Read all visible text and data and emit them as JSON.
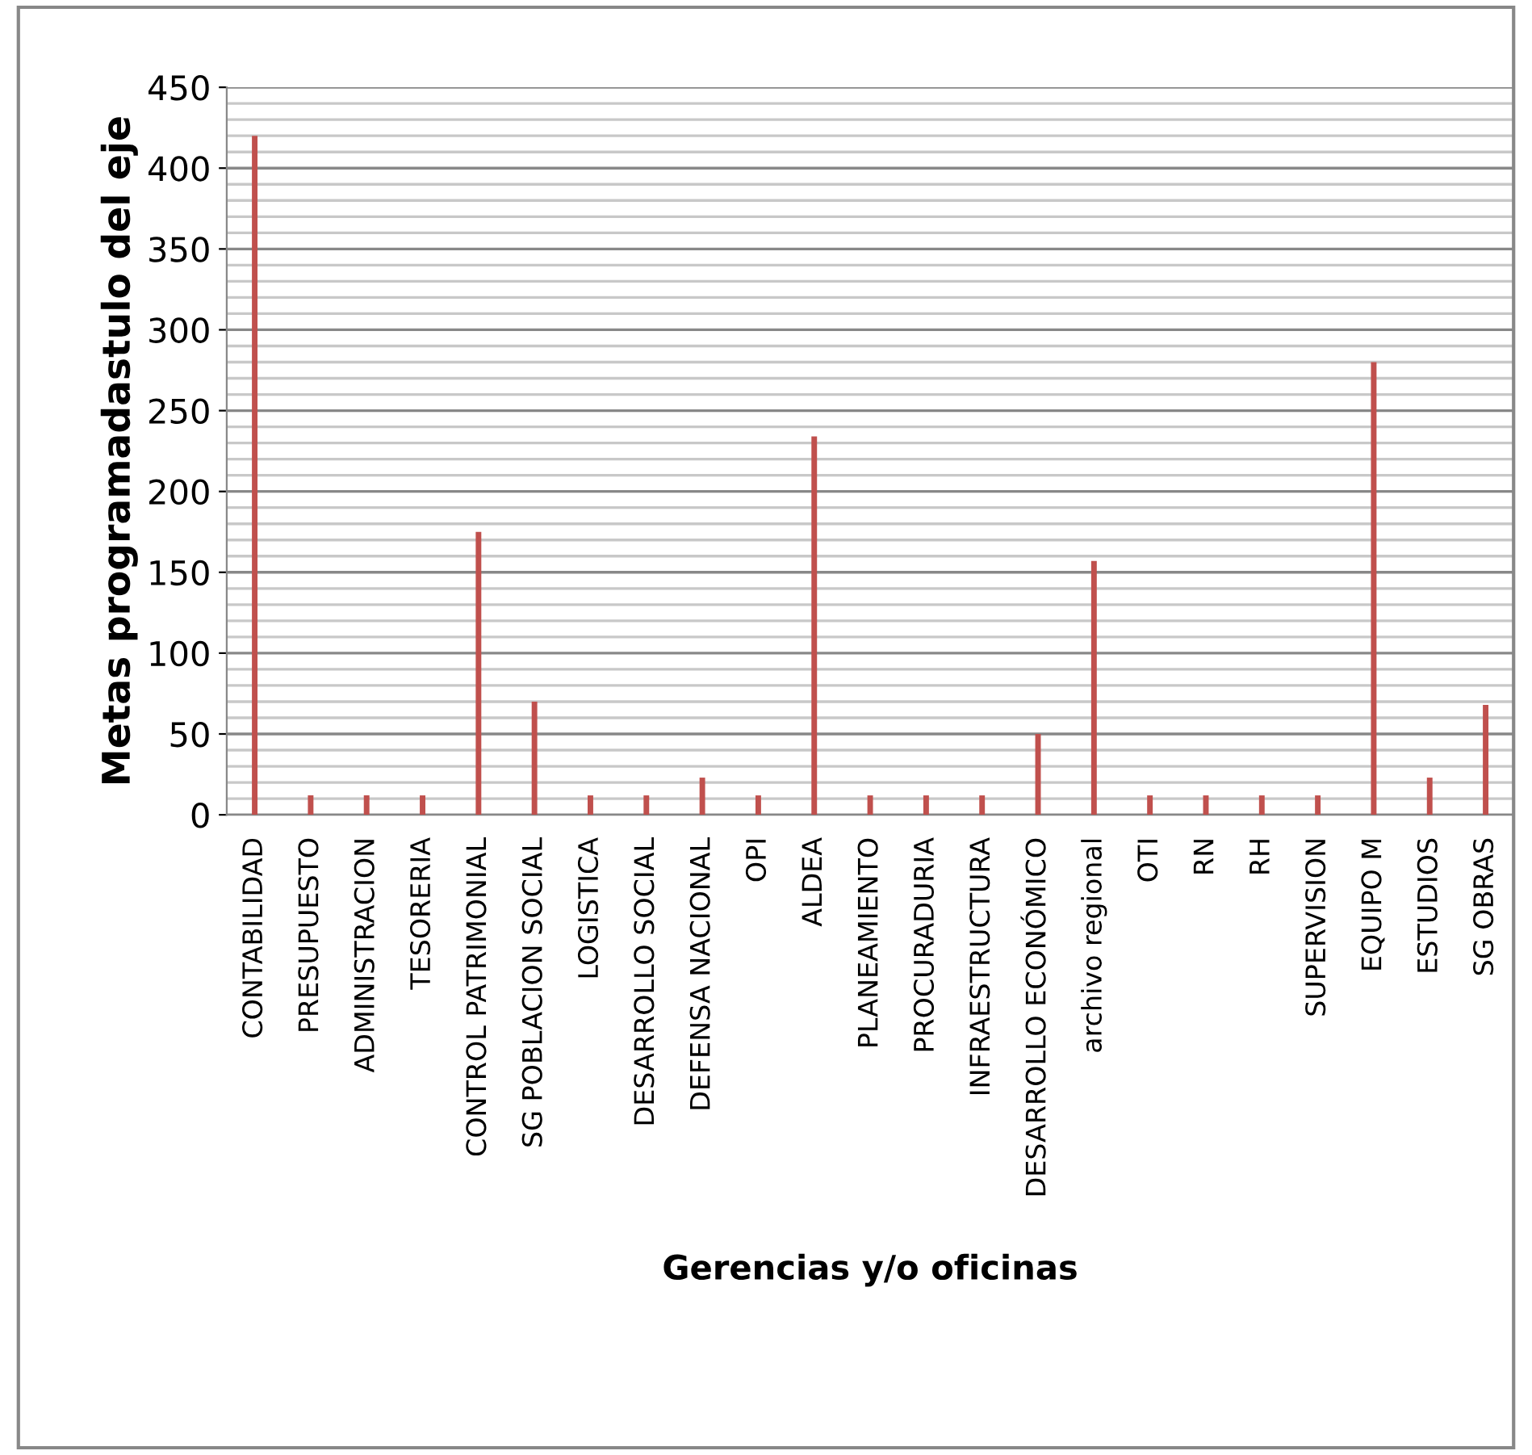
{
  "chart_data": {
    "type": "bar",
    "xlabel": "Gerencias y/o oficinas",
    "ylabel": "Metas programadastulo del eje",
    "categories": [
      "CONTABILIDAD",
      "PRESUPUESTO",
      "ADMINISTRACION",
      "TESORERIA",
      "CONTROL PATRIMONIAL",
      "SG POBLACION SOCIAL",
      "LOGISTICA",
      "DESARROLLO SOCIAL",
      "DEFENSA NACIONAL",
      "OPI",
      "ALDEA",
      "PLANEAMIENTO",
      "PROCURADURIA",
      "INFRAESTRUCTURA",
      "DESARROLLO ECONÓMICO",
      "archivo regional",
      "OTI",
      "RN",
      "RH",
      "SUPERVISION",
      "EQUIPO M",
      "ESTUDIOS",
      "SG OBRAS"
    ],
    "values": [
      420,
      12,
      12,
      12,
      175,
      70,
      12,
      12,
      23,
      12,
      234,
      12,
      12,
      12,
      50,
      157,
      12,
      12,
      12,
      12,
      280,
      23,
      68
    ],
    "color": "#c0504d",
    "ylim": [
      0,
      450
    ],
    "yticks": [
      0,
      50,
      100,
      150,
      200,
      250,
      300,
      350,
      400,
      450
    ],
    "grid": "y",
    "legend": false
  }
}
